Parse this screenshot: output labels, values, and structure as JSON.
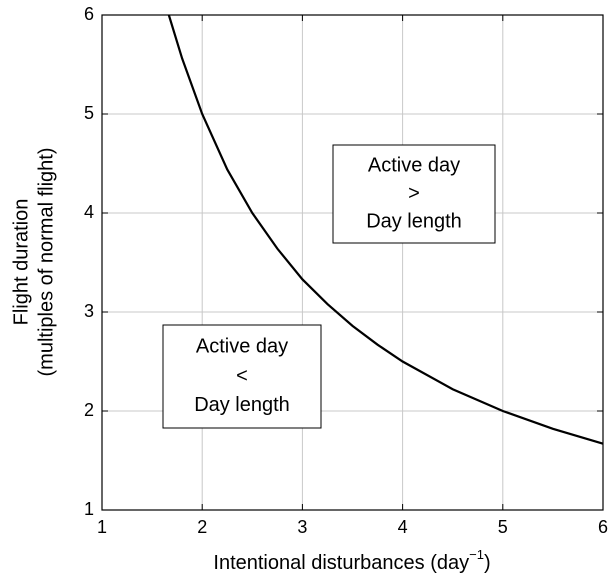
{
  "chart_data": {
    "type": "line",
    "x_label": {
      "text": "Intentional disturbances (day",
      "superscript": "−1",
      "suffix": ")"
    },
    "y_label": [
      "Flight duration",
      "(multiples of normal flight)"
    ],
    "series": [
      {
        "color": "#000000",
        "x": [
          1.667,
          1.8,
          2,
          2.25,
          2.5,
          2.75,
          3,
          3.25,
          3.5,
          3.75,
          4,
          4.5,
          5,
          5.5,
          6
        ],
        "values": [
          6,
          5.56,
          5,
          4.44,
          4,
          3.64,
          3.33,
          3.08,
          2.86,
          2.67,
          2.5,
          2.22,
          2,
          1.82,
          1.67
        ]
      }
    ],
    "xlim": [
      1,
      6
    ],
    "xticks": [
      1,
      2,
      3,
      4,
      5,
      6
    ],
    "ylim": [
      1,
      6
    ],
    "yticks": [
      1,
      2,
      3,
      4,
      5,
      6
    ],
    "grid": true,
    "annotations": [
      {
        "lines": [
          "Active day",
          ">",
          "Day length"
        ]
      },
      {
        "lines": [
          "Active day",
          "<",
          "Day length"
        ]
      }
    ]
  }
}
